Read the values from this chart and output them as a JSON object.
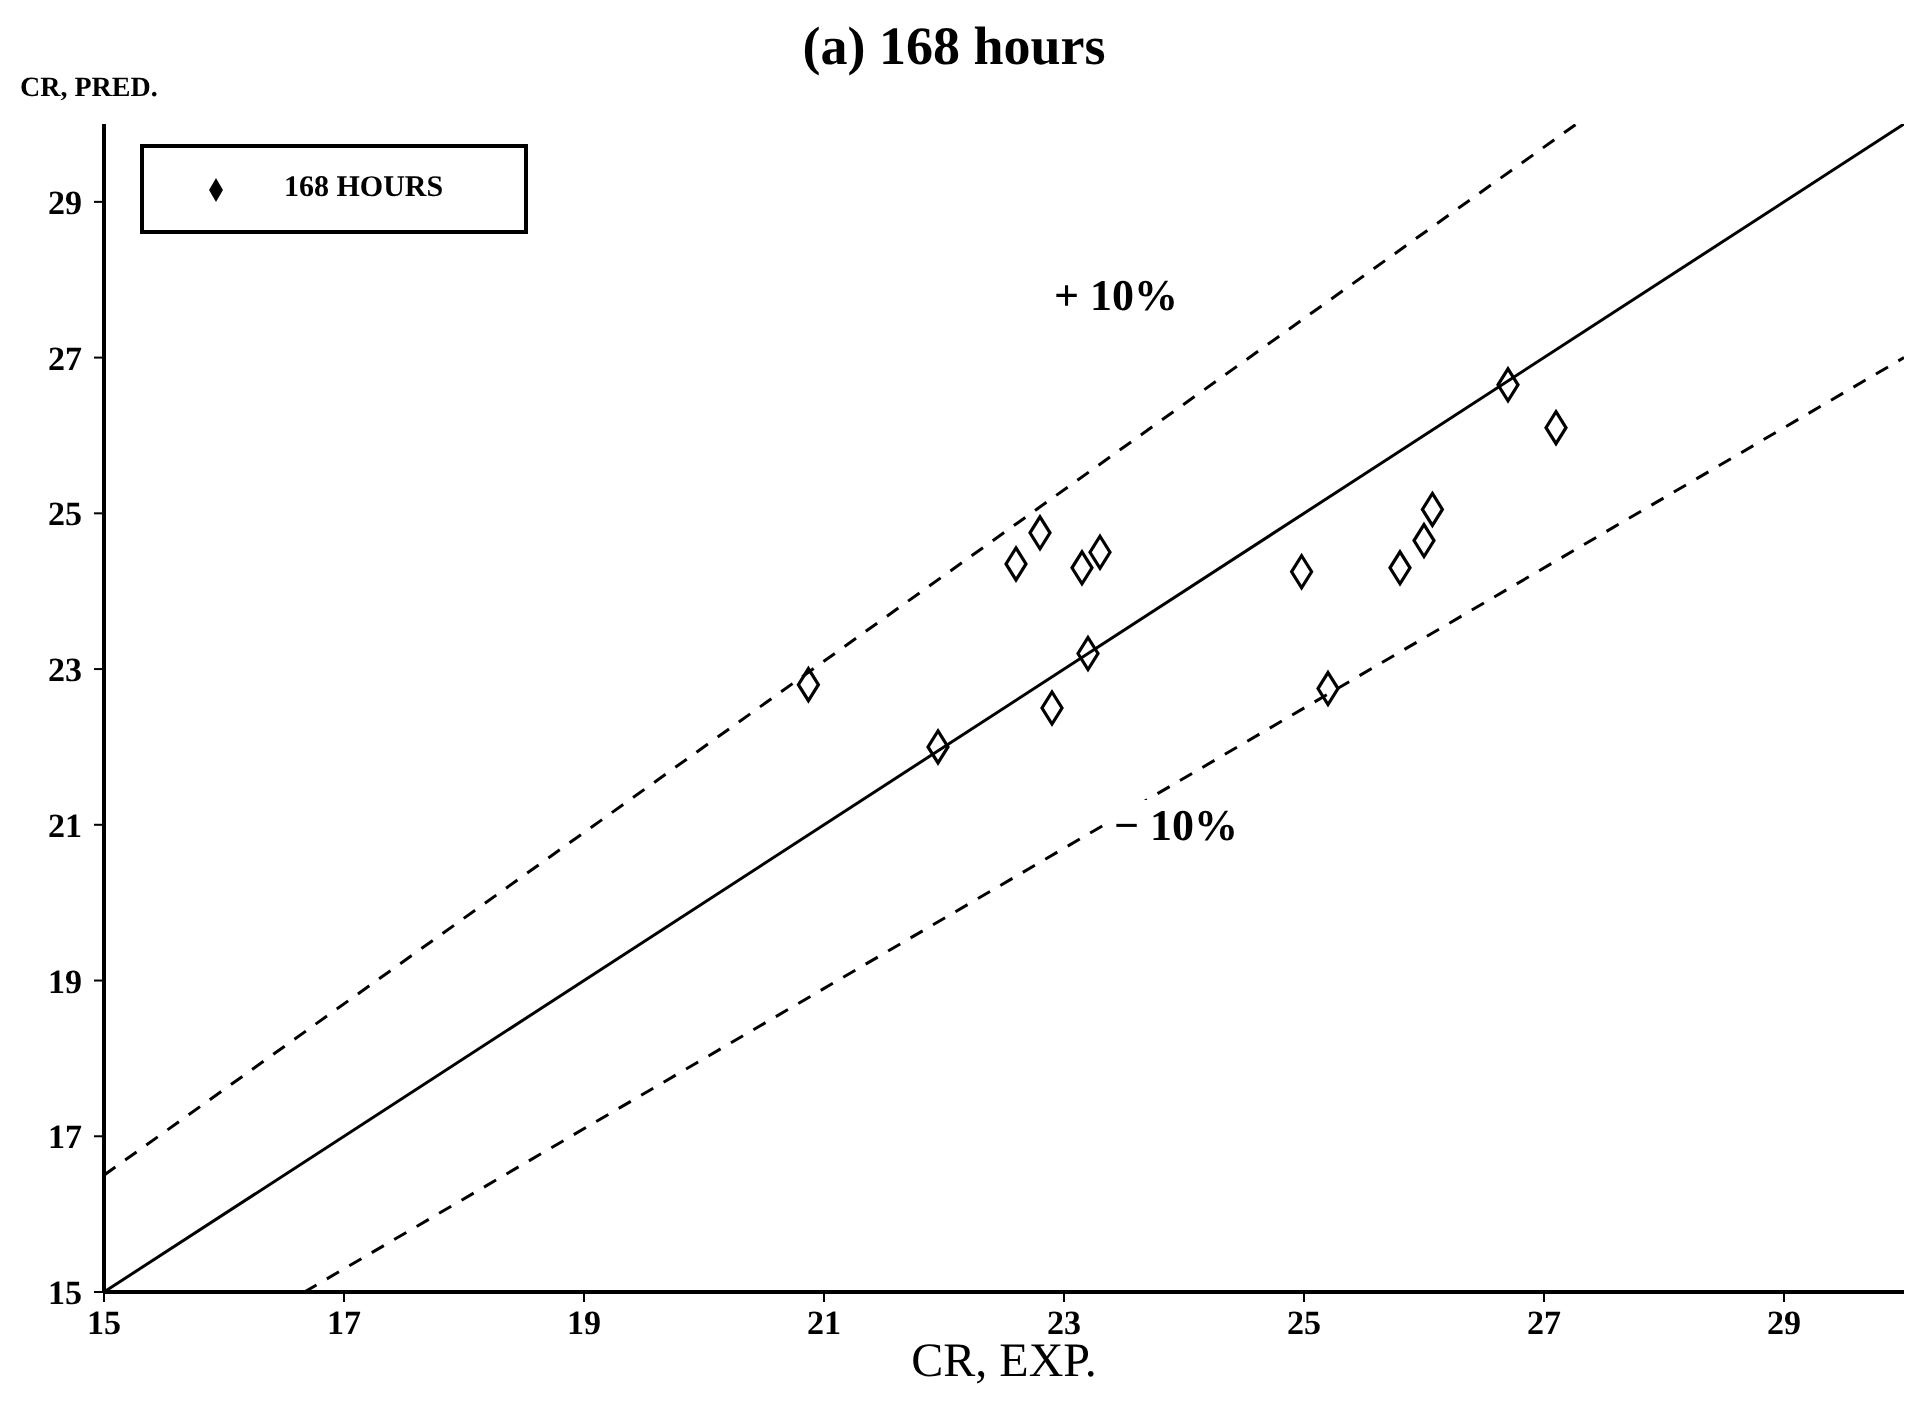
{
  "chart_data": {
    "type": "scatter",
    "title": "(a) 168 hours",
    "xlabel": "CR, EXP.",
    "ylabel": "CR, PRED.",
    "xlim": [
      15,
      30
    ],
    "ylim": [
      15,
      30
    ],
    "xticks": [
      15,
      17,
      19,
      21,
      23,
      25,
      27,
      29
    ],
    "yticks": [
      15,
      17,
      19,
      21,
      23,
      25,
      27,
      29
    ],
    "grid": false,
    "legend": "top left",
    "marker": "diamond",
    "annotations": [
      "+ 10%",
      "− 10%"
    ],
    "series": [
      {
        "name": "168 HOURS",
        "color": "#000000",
        "x": [
          20.87,
          21.95,
          22.9,
          22.6,
          22.8,
          23.15,
          23.3,
          23.2,
          24.98,
          25.2,
          25.8,
          26.0,
          26.07,
          26.7,
          27.1
        ],
        "values": [
          22.8,
          22.0,
          22.5,
          24.35,
          24.75,
          24.3,
          24.5,
          23.2,
          24.25,
          22.75,
          24.3,
          24.65,
          25.05,
          26.65,
          26.1
        ]
      },
      {
        "type": "line",
        "color": "#000000",
        "line_style": "solid",
        "marker": "none",
        "x": [
          15,
          30
        ],
        "values": [
          15,
          30
        ]
      },
      {
        "type": "line",
        "color": "#000000",
        "line_style": "dashed",
        "marker": "none",
        "x": [
          15,
          27.27
        ],
        "values": [
          16.5,
          30
        ]
      },
      {
        "type": "line",
        "color": "#000000",
        "line_style": "dashed",
        "marker": "none",
        "x": [
          16.67,
          30
        ],
        "values": [
          15,
          27
        ]
      }
    ]
  }
}
